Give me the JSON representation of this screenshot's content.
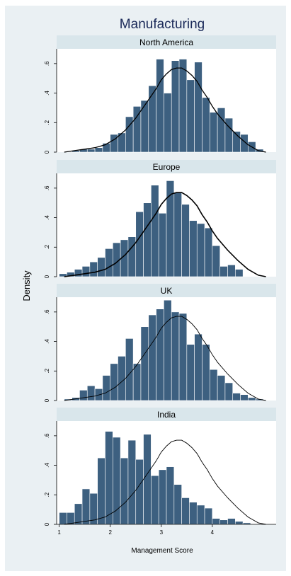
{
  "chart_data": {
    "type": "bar",
    "title": "Manufacturing",
    "xlabel": "Management Score",
    "ylabel": "Density",
    "xlim": [
      0.95,
      5.25
    ],
    "ylim": [
      0,
      0.7
    ],
    "x_ticks": [
      "1",
      "2",
      "3",
      "4"
    ],
    "y_ticks": [
      "0",
      ".2",
      ".4",
      ".6"
    ],
    "bin_width": 0.15,
    "grid": false,
    "reference_density": {
      "x": [
        1.1,
        1.3,
        1.5,
        1.7,
        1.9,
        2.1,
        2.3,
        2.5,
        2.7,
        2.9,
        3.0,
        3.1,
        3.2,
        3.3,
        3.4,
        3.5,
        3.6,
        3.7,
        3.8,
        3.9,
        4.0,
        4.1,
        4.3,
        4.5,
        4.7,
        4.9,
        5.05
      ],
      "y": [
        0.0,
        0.01,
        0.02,
        0.03,
        0.05,
        0.09,
        0.15,
        0.23,
        0.33,
        0.43,
        0.49,
        0.53,
        0.56,
        0.57,
        0.57,
        0.55,
        0.52,
        0.48,
        0.42,
        0.37,
        0.31,
        0.26,
        0.18,
        0.11,
        0.05,
        0.01,
        0.0
      ]
    },
    "panels": [
      {
        "name": "North America",
        "bin_starts": [
          1.25,
          1.4,
          1.55,
          1.7,
          1.85,
          2.0,
          2.15,
          2.3,
          2.45,
          2.6,
          2.75,
          2.9,
          3.05,
          3.2,
          3.35,
          3.5,
          3.65,
          3.8,
          3.95,
          4.1,
          4.25,
          4.4,
          4.55,
          4.7,
          4.85
        ],
        "values": [
          0.01,
          0.02,
          0.02,
          0.03,
          0.06,
          0.12,
          0.13,
          0.24,
          0.31,
          0.35,
          0.45,
          0.63,
          0.4,
          0.62,
          0.63,
          0.49,
          0.61,
          0.37,
          0.27,
          0.3,
          0.23,
          0.14,
          0.12,
          0.07,
          0.02
        ]
      },
      {
        "name": "Europe",
        "bin_starts": [
          1.0,
          1.15,
          1.3,
          1.45,
          1.6,
          1.75,
          1.9,
          2.05,
          2.2,
          2.35,
          2.5,
          2.65,
          2.8,
          2.95,
          3.1,
          3.25,
          3.4,
          3.55,
          3.7,
          3.85,
          4.0,
          4.15,
          4.3,
          4.45
        ],
        "values": [
          0.02,
          0.03,
          0.05,
          0.07,
          0.1,
          0.13,
          0.19,
          0.23,
          0.25,
          0.27,
          0.44,
          0.5,
          0.62,
          0.43,
          0.65,
          0.57,
          0.49,
          0.38,
          0.36,
          0.33,
          0.21,
          0.07,
          0.08,
          0.05
        ]
      },
      {
        "name": "UK",
        "bin_starts": [
          1.1,
          1.25,
          1.4,
          1.55,
          1.7,
          1.85,
          2.0,
          2.15,
          2.3,
          2.45,
          2.6,
          2.75,
          2.9,
          3.05,
          3.2,
          3.35,
          3.5,
          3.65,
          3.8,
          3.95,
          4.1,
          4.25,
          4.4,
          4.55,
          4.7,
          4.85
        ],
        "values": [
          0.01,
          0.02,
          0.07,
          0.1,
          0.08,
          0.17,
          0.25,
          0.3,
          0.42,
          0.25,
          0.5,
          0.58,
          0.62,
          0.68,
          0.6,
          0.59,
          0.38,
          0.45,
          0.38,
          0.21,
          0.17,
          0.12,
          0.05,
          0.04,
          0.02,
          0.01
        ]
      },
      {
        "name": "India",
        "bin_starts": [
          1.0,
          1.15,
          1.3,
          1.45,
          1.6,
          1.75,
          1.9,
          2.05,
          2.2,
          2.35,
          2.5,
          2.65,
          2.8,
          2.95,
          3.1,
          3.25,
          3.4,
          3.55,
          3.7,
          3.85,
          4.0,
          4.15,
          4.3,
          4.45,
          4.6
        ],
        "values": [
          0.08,
          0.08,
          0.14,
          0.24,
          0.21,
          0.45,
          0.63,
          0.59,
          0.45,
          0.57,
          0.44,
          0.61,
          0.33,
          0.37,
          0.39,
          0.27,
          0.18,
          0.15,
          0.13,
          0.11,
          0.04,
          0.03,
          0.04,
          0.02,
          0.01
        ]
      }
    ]
  }
}
